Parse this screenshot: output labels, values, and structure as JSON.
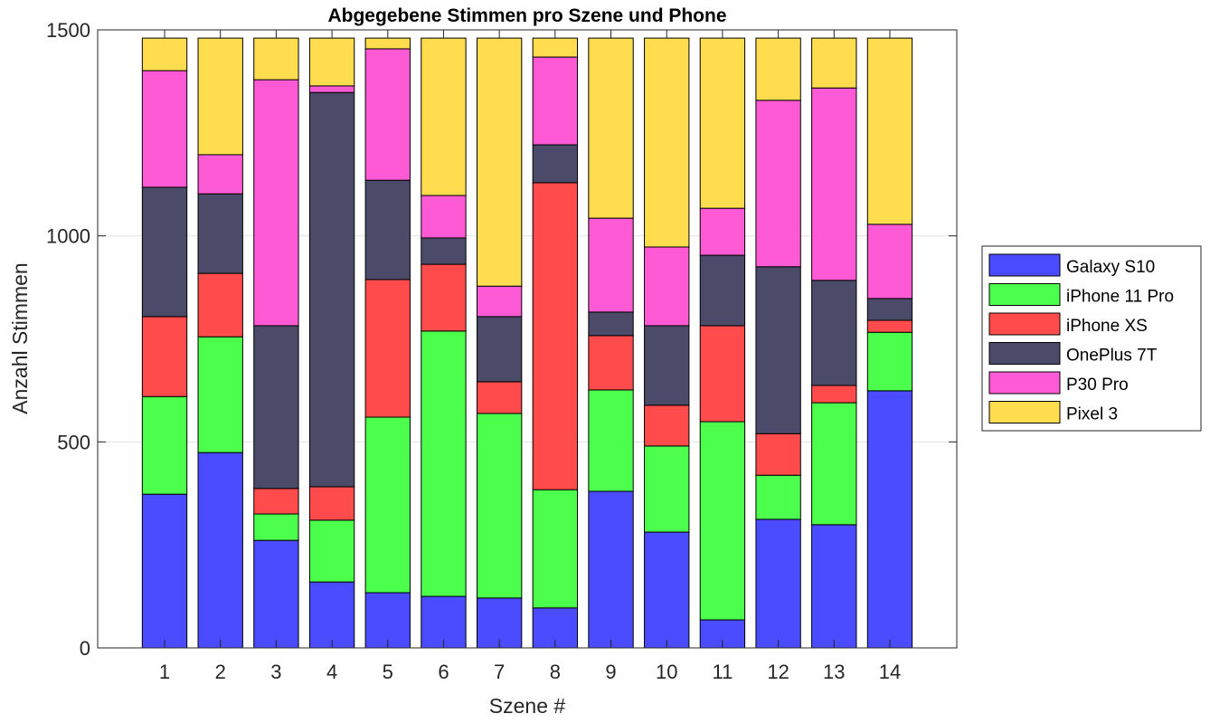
{
  "chart_data": {
    "type": "bar",
    "stacked": true,
    "title": "Abgegebene Stimmen pro Szene und Phone",
    "xlabel": "Szene #",
    "ylabel": "Anzahl Stimmen",
    "categories": [
      "1",
      "2",
      "3",
      "4",
      "5",
      "6",
      "7",
      "8",
      "9",
      "10",
      "11",
      "12",
      "13",
      "14"
    ],
    "ylim": [
      0,
      1500
    ],
    "yticks": [
      "0",
      "500",
      "1000",
      "1500"
    ],
    "grid": "horizontal",
    "legend_position": "right",
    "series": [
      {
        "name": "Galaxy S10",
        "color": "#4b4bff",
        "values": [
          373,
          474,
          261,
          160,
          134,
          125,
          121,
          97,
          380,
          281,
          68,
          312,
          299,
          624
        ]
      },
      {
        "name": "iPhone 11 Pro",
        "color": "#4cff4c",
        "values": [
          237,
          281,
          64,
          150,
          426,
          644,
          448,
          287,
          246,
          209,
          481,
          107,
          296,
          142
        ]
      },
      {
        "name": "iPhone XS",
        "color": "#ff4b4b",
        "values": [
          194,
          154,
          62,
          81,
          334,
          162,
          77,
          745,
          132,
          99,
          233,
          101,
          42,
          29
        ]
      },
      {
        "name": "OnePlus 7T",
        "color": "#4b4b69",
        "values": [
          314,
          193,
          395,
          957,
          241,
          64,
          158,
          92,
          57,
          193,
          171,
          405,
          255,
          53
        ]
      },
      {
        "name": "P30 Pro",
        "color": "#ff5ad6",
        "values": [
          283,
          95,
          597,
          16,
          319,
          103,
          74,
          213,
          228,
          191,
          114,
          404,
          467,
          180
        ]
      },
      {
        "name": "Pixel 3",
        "color": "#ffdd4f",
        "values": [
          79,
          283,
          101,
          116,
          26,
          382,
          602,
          46,
          437,
          507,
          413,
          151,
          121,
          452
        ]
      }
    ]
  }
}
